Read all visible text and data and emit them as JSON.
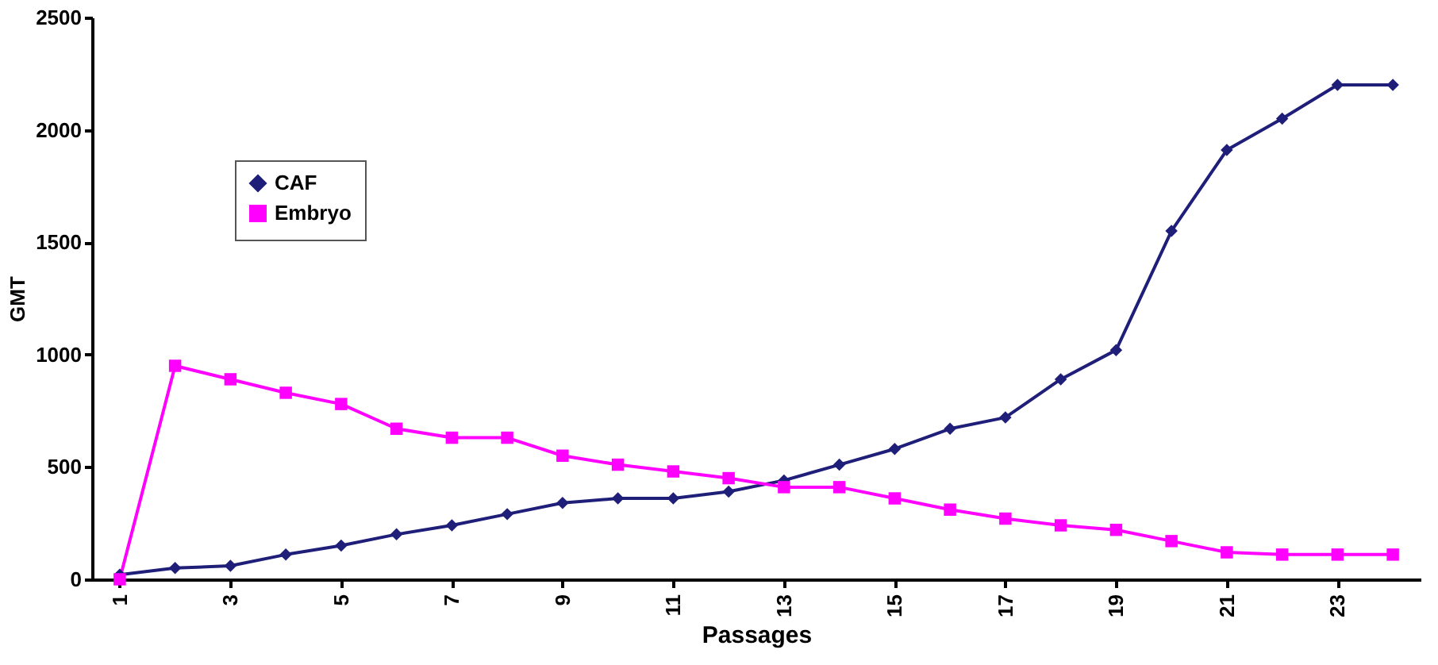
{
  "chart_data": {
    "type": "line",
    "xlabel": "Passages",
    "ylabel": "GMT",
    "categories": [
      "1",
      null,
      "3",
      null,
      "5",
      null,
      "7",
      null,
      "9",
      null,
      "11",
      null,
      "13",
      null,
      "15",
      null,
      "17",
      null,
      "19",
      null,
      "21",
      null,
      "23",
      null
    ],
    "ylim": [
      0,
      2500
    ],
    "yticks": [
      0,
      500,
      1000,
      1500,
      2000,
      2500
    ],
    "grid": false,
    "legend": "top left",
    "series": [
      {
        "name": "CAF",
        "color": "#1f1f7a",
        "marker": "diamond",
        "values": [
          20,
          50,
          60,
          110,
          150,
          200,
          240,
          290,
          340,
          360,
          360,
          390,
          440,
          510,
          580,
          670,
          720,
          890,
          1020,
          1550,
          1910,
          2050,
          2200,
          2200
        ]
      },
      {
        "name": "Embryo",
        "color": "#ff00ff",
        "marker": "square",
        "values": [
          0,
          950,
          890,
          830,
          780,
          670,
          630,
          630,
          550,
          510,
          480,
          450,
          410,
          410,
          360,
          310,
          270,
          240,
          220,
          170,
          120,
          110,
          110,
          110
        ]
      }
    ]
  }
}
